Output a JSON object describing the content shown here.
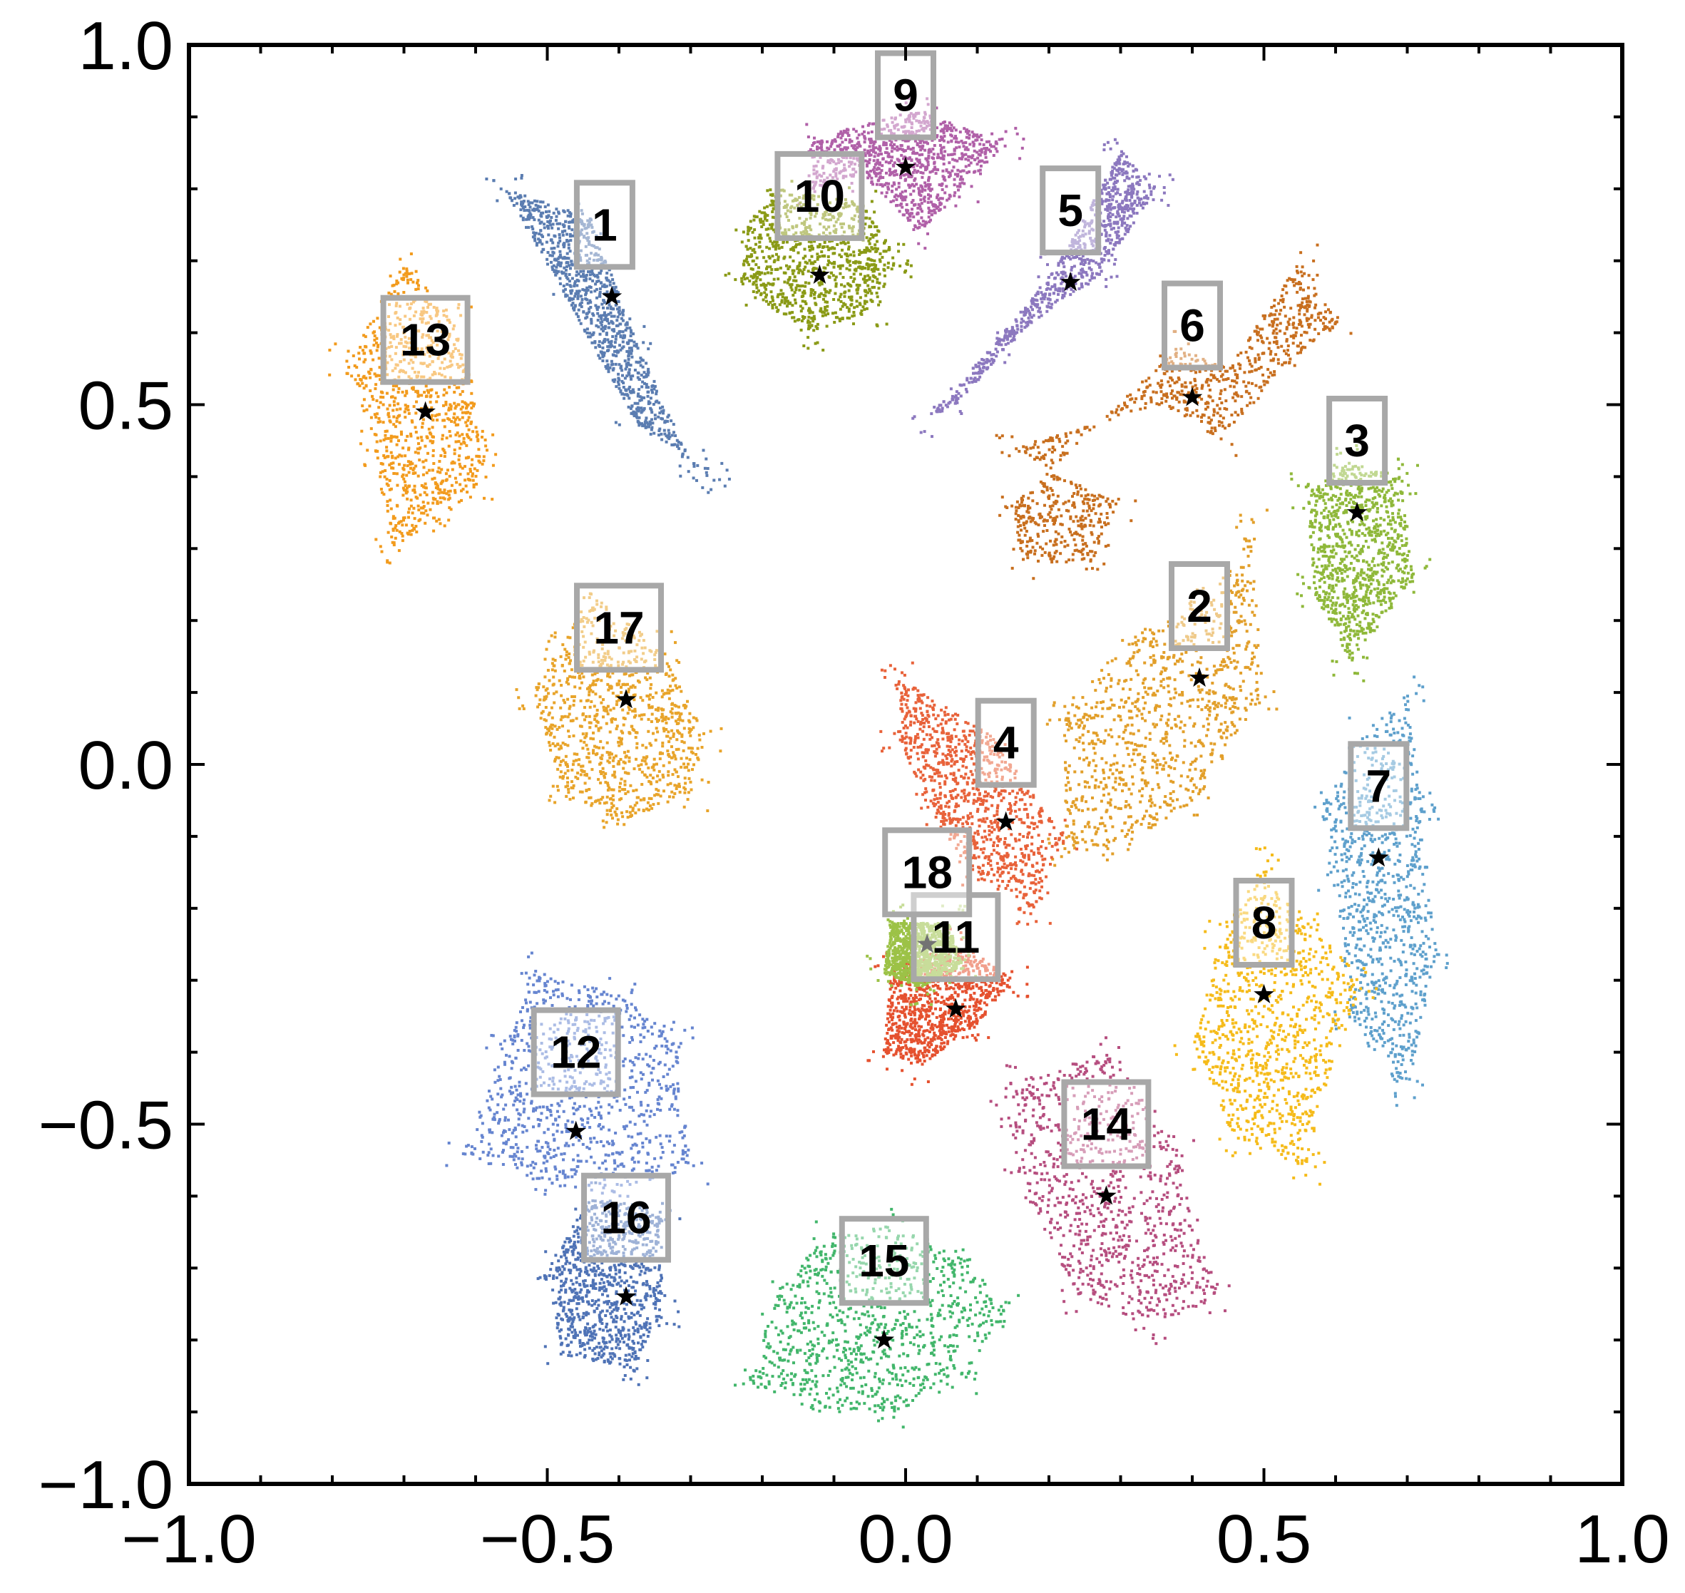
{
  "chart_data": {
    "type": "scatter",
    "title": "",
    "xlabel": "",
    "ylabel": "",
    "xlim": [
      -1.0,
      1.0
    ],
    "ylim": [
      -1.0,
      1.0
    ],
    "x_ticks": [
      "−1.0",
      "−0.5",
      "0.0",
      "0.5",
      "1.0"
    ],
    "y_ticks": [
      "1.0",
      "0.5",
      "0.0",
      "−0.5",
      "−1.0"
    ],
    "x_tick_values": [
      -1.0,
      -0.5,
      0.0,
      0.5,
      1.0
    ],
    "y_tick_values": [
      1.0,
      0.5,
      0.0,
      -0.5,
      -1.0
    ],
    "grid": false,
    "legend": "none",
    "clusters": [
      {
        "label": "1",
        "color": "#5b7db1",
        "star": [
          -0.41,
          0.65
        ],
        "label_at": [
          -0.42,
          0.75
        ],
        "cloud": [
          [
            -0.56,
            0.8
          ],
          [
            -0.44,
            0.76
          ],
          [
            -0.38,
            0.6
          ],
          [
            -0.3,
            0.42
          ],
          [
            -0.27,
            0.4
          ],
          [
            -0.38,
            0.48
          ],
          [
            -0.48,
            0.66
          ]
        ]
      },
      {
        "label": "2",
        "color": "#e29f2a",
        "star": [
          0.41,
          0.12
        ],
        "label_at": [
          0.41,
          0.22
        ],
        "cloud": [
          [
            0.48,
            0.33
          ],
          [
            0.5,
            0.1
          ],
          [
            0.4,
            -0.06
          ],
          [
            0.3,
            -0.12
          ],
          [
            0.22,
            -0.12
          ],
          [
            0.22,
            0.08
          ],
          [
            0.32,
            0.18
          ],
          [
            0.42,
            0.22
          ]
        ]
      },
      {
        "label": "3",
        "color": "#8fb83a",
        "star": [
          0.63,
          0.35
        ],
        "label_at": [
          0.63,
          0.45
        ],
        "cloud": [
          [
            0.62,
            0.42
          ],
          [
            0.69,
            0.4
          ],
          [
            0.71,
            0.26
          ],
          [
            0.62,
            0.14
          ],
          [
            0.57,
            0.24
          ],
          [
            0.56,
            0.38
          ]
        ]
      },
      {
        "label": "4",
        "color": "#e8623a",
        "star": [
          0.14,
          -0.08
        ],
        "label_at": [
          0.14,
          0.03
        ],
        "cloud": [
          [
            -0.01,
            0.12
          ],
          [
            0.12,
            0.04
          ],
          [
            0.22,
            -0.1
          ],
          [
            0.18,
            -0.2
          ],
          [
            0.1,
            -0.16
          ],
          [
            0.03,
            -0.06
          ],
          [
            -0.01,
            0.04
          ]
        ]
      },
      {
        "label": "5",
        "color": "#8c78bf",
        "star": [
          0.23,
          0.67
        ],
        "label_at": [
          0.23,
          0.77
        ],
        "cloud": [
          [
            0.3,
            0.85
          ],
          [
            0.35,
            0.8
          ],
          [
            0.27,
            0.68
          ],
          [
            0.17,
            0.61
          ],
          [
            0.07,
            0.5
          ],
          [
            0.03,
            0.48
          ],
          [
            0.12,
            0.58
          ],
          [
            0.21,
            0.69
          ]
        ]
      },
      {
        "label": "6",
        "color": "#c86f1f",
        "star": [
          0.4,
          0.51
        ],
        "label_at": [
          0.4,
          0.61
        ],
        "cloud": [
          [
            0.38,
            0.58
          ],
          [
            0.45,
            0.55
          ],
          [
            0.55,
            0.7
          ],
          [
            0.61,
            0.62
          ],
          [
            0.54,
            0.56
          ],
          [
            0.44,
            0.45
          ],
          [
            0.36,
            0.5
          ],
          [
            0.15,
            0.44
          ],
          [
            0.3,
            0.36
          ],
          [
            0.26,
            0.28
          ],
          [
            0.16,
            0.28
          ],
          [
            0.15,
            0.36
          ]
        ]
      },
      {
        "label": "7",
        "color": "#5ea0cc",
        "star": [
          0.66,
          -0.13
        ],
        "label_at": [
          0.66,
          -0.03
        ],
        "cloud": [
          [
            0.7,
            0.1
          ],
          [
            0.72,
            -0.06
          ],
          [
            0.74,
            -0.26
          ],
          [
            0.7,
            -0.46
          ],
          [
            0.62,
            -0.36
          ],
          [
            0.6,
            -0.16
          ],
          [
            0.58,
            -0.06
          ],
          [
            0.64,
            0.04
          ]
        ]
      },
      {
        "label": "8",
        "color": "#f5bb1a",
        "star": [
          0.5,
          -0.32
        ],
        "label_at": [
          0.5,
          -0.22
        ],
        "cloud": [
          [
            0.5,
            -0.14
          ],
          [
            0.56,
            -0.22
          ],
          [
            0.64,
            -0.3
          ],
          [
            0.58,
            -0.46
          ],
          [
            0.56,
            -0.56
          ],
          [
            0.46,
            -0.52
          ],
          [
            0.4,
            -0.4
          ],
          [
            0.44,
            -0.24
          ]
        ]
      },
      {
        "label": "9",
        "color": "#b060a8",
        "star": [
          0.0,
          0.83
        ],
        "label_at": [
          0.0,
          0.93
        ],
        "cloud": [
          [
            -0.13,
            0.87
          ],
          [
            0.02,
            0.91
          ],
          [
            0.14,
            0.86
          ],
          [
            0.08,
            0.8
          ],
          [
            0.02,
            0.74
          ],
          [
            -0.06,
            0.82
          ],
          [
            -0.13,
            0.8
          ]
        ]
      },
      {
        "label": "10",
        "color": "#8a9a16",
        "star": [
          -0.12,
          0.68
        ],
        "label_at": [
          -0.12,
          0.79
        ],
        "cloud": [
          [
            -0.18,
            0.8
          ],
          [
            -0.06,
            0.78
          ],
          [
            -0.01,
            0.7
          ],
          [
            -0.05,
            0.63
          ],
          [
            -0.13,
            0.6
          ],
          [
            -0.23,
            0.66
          ],
          [
            -0.22,
            0.75
          ]
        ]
      },
      {
        "label": "11",
        "color": "#e5512f",
        "star": [
          0.07,
          -0.34
        ],
        "label_at": [
          0.07,
          -0.24
        ],
        "cloud": [
          [
            -0.02,
            -0.28
          ],
          [
            0.08,
            -0.25
          ],
          [
            0.15,
            -0.3
          ],
          [
            0.1,
            -0.36
          ],
          [
            0.02,
            -0.42
          ],
          [
            -0.03,
            -0.4
          ]
        ]
      },
      {
        "label": "12",
        "color": "#6685d0",
        "star": [
          -0.46,
          -0.51
        ],
        "label_at": [
          -0.46,
          -0.4
        ],
        "cloud": [
          [
            -0.52,
            -0.28
          ],
          [
            -0.4,
            -0.32
          ],
          [
            -0.32,
            -0.38
          ],
          [
            -0.3,
            -0.56
          ],
          [
            -0.4,
            -0.6
          ],
          [
            -0.52,
            -0.58
          ],
          [
            -0.62,
            -0.54
          ],
          [
            -0.56,
            -0.4
          ]
        ]
      },
      {
        "label": "13",
        "color": "#f29b1d",
        "star": [
          -0.67,
          0.49
        ],
        "label_at": [
          -0.67,
          0.59
        ],
        "cloud": [
          [
            -0.7,
            0.7
          ],
          [
            -0.63,
            0.62
          ],
          [
            -0.58,
            0.44
          ],
          [
            -0.6,
            0.38
          ],
          [
            -0.65,
            0.34
          ],
          [
            -0.72,
            0.3
          ],
          [
            -0.74,
            0.44
          ],
          [
            -0.78,
            0.56
          ]
        ]
      },
      {
        "label": "14",
        "color": "#b64e7f",
        "star": [
          0.28,
          -0.6
        ],
        "label_at": [
          0.28,
          -0.5
        ],
        "cloud": [
          [
            0.16,
            -0.44
          ],
          [
            0.28,
            -0.4
          ],
          [
            0.38,
            -0.52
          ],
          [
            0.4,
            -0.64
          ],
          [
            0.44,
            -0.74
          ],
          [
            0.34,
            -0.78
          ],
          [
            0.24,
            -0.74
          ],
          [
            0.16,
            -0.58
          ],
          [
            0.14,
            -0.48
          ]
        ]
      },
      {
        "label": "15",
        "color": "#42b66b",
        "star": [
          -0.03,
          -0.8
        ],
        "label_at": [
          -0.03,
          -0.69
        ],
        "cloud": [
          [
            -0.12,
            -0.66
          ],
          [
            -0.02,
            -0.64
          ],
          [
            0.08,
            -0.68
          ],
          [
            0.14,
            -0.76
          ],
          [
            0.08,
            -0.86
          ],
          [
            -0.02,
            -0.9
          ],
          [
            -0.12,
            -0.9
          ],
          [
            -0.22,
            -0.86
          ],
          [
            -0.18,
            -0.74
          ]
        ]
      },
      {
        "label": "16",
        "color": "#4f73b6",
        "star": [
          -0.39,
          -0.74
        ],
        "label_at": [
          -0.39,
          -0.63
        ],
        "cloud": [
          [
            -0.44,
            -0.6
          ],
          [
            -0.34,
            -0.62
          ],
          [
            -0.34,
            -0.76
          ],
          [
            -0.38,
            -0.84
          ],
          [
            -0.48,
            -0.82
          ],
          [
            -0.5,
            -0.7
          ]
        ]
      },
      {
        "label": "17",
        "color": "#e8a42a",
        "star": [
          -0.39,
          0.09
        ],
        "label_at": [
          -0.4,
          0.19
        ],
        "cloud": [
          [
            -0.44,
            0.24
          ],
          [
            -0.34,
            0.16
          ],
          [
            -0.28,
            0.04
          ],
          [
            -0.3,
            -0.04
          ],
          [
            -0.4,
            -0.08
          ],
          [
            -0.48,
            -0.04
          ],
          [
            -0.52,
            0.1
          ],
          [
            -0.48,
            0.16
          ]
        ]
      },
      {
        "label": "18",
        "color": "#9cc247",
        "star": [
          0.03,
          -0.25
        ],
        "label_at": [
          0.03,
          -0.15
        ],
        "cloud": [
          [
            -0.02,
            -0.22
          ],
          [
            0.06,
            -0.22
          ],
          [
            0.08,
            -0.28
          ],
          [
            0.02,
            -0.31
          ],
          [
            -0.03,
            -0.29
          ]
        ]
      }
    ]
  }
}
